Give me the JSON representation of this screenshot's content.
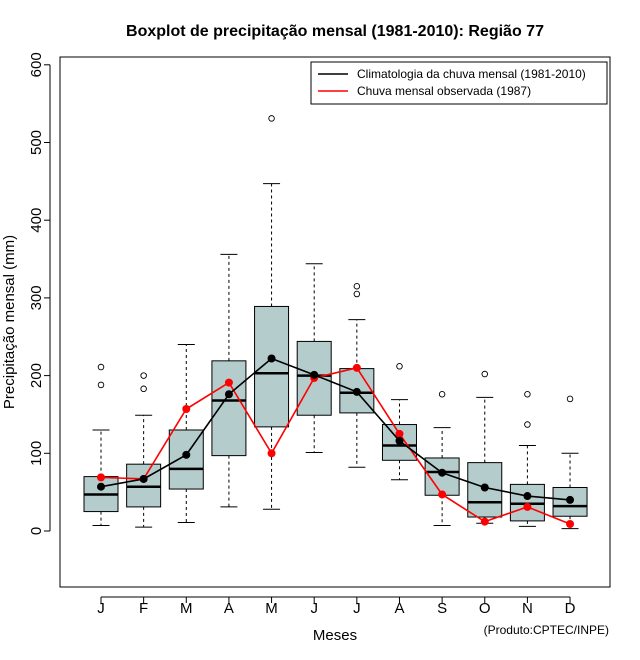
{
  "chart_data": {
    "type": "boxplot",
    "title": "Boxplot de precipitação mensal (1981-2010): Região 77",
    "xlabel": "Meses",
    "ylabel": "Precipitação mensal (mm)",
    "credit": "(Produto:CPTEC/INPE)",
    "ylim": [
      -70,
      610
    ],
    "yticks": [
      0,
      100,
      200,
      300,
      400,
      500,
      600
    ],
    "categories": [
      "J",
      "F",
      "M",
      "A",
      "M",
      "J",
      "J",
      "A",
      "S",
      "O",
      "N",
      "D"
    ],
    "boxes": [
      {
        "whisker_low": 7,
        "q1": 25,
        "median": 47,
        "q3": 70,
        "whisker_high": 130,
        "outliers": [
          188,
          211
        ]
      },
      {
        "whisker_low": 5,
        "q1": 31,
        "median": 57,
        "q3": 86,
        "whisker_high": 149,
        "outliers": [
          183,
          200
        ]
      },
      {
        "whisker_low": 11,
        "q1": 54,
        "median": 80,
        "q3": 130,
        "whisker_high": 240,
        "outliers": []
      },
      {
        "whisker_low": 31,
        "q1": 97,
        "median": 168,
        "q3": 219,
        "whisker_high": 356,
        "outliers": []
      },
      {
        "whisker_low": 28,
        "q1": 134,
        "median": 203,
        "q3": 289,
        "whisker_high": 447,
        "outliers": [
          531
        ]
      },
      {
        "whisker_low": 101,
        "q1": 149,
        "median": 200,
        "q3": 244,
        "whisker_high": 344,
        "outliers": []
      },
      {
        "whisker_low": 82,
        "q1": 152,
        "median": 178,
        "q3": 209,
        "whisker_high": 272,
        "outliers": [
          305,
          315
        ]
      },
      {
        "whisker_low": 66,
        "q1": 91,
        "median": 110,
        "q3": 137,
        "whisker_high": 169,
        "outliers": [
          212
        ]
      },
      {
        "whisker_low": 7,
        "q1": 46,
        "median": 76,
        "q3": 94,
        "whisker_high": 133,
        "outliers": [
          176
        ]
      },
      {
        "whisker_low": 10,
        "q1": 18,
        "median": 37,
        "q3": 88,
        "whisker_high": 172,
        "outliers": [
          202
        ]
      },
      {
        "whisker_low": 6,
        "q1": 13,
        "median": 35,
        "q3": 60,
        "whisker_high": 110,
        "outliers": [
          137,
          176
        ]
      },
      {
        "whisker_low": 3,
        "q1": 19,
        "median": 32,
        "q3": 56,
        "whisker_high": 100,
        "outliers": [
          170
        ]
      }
    ],
    "series": [
      {
        "name": "Climatologia da chuva mensal (1981-2010)",
        "color": "#000000",
        "values": [
          57,
          67,
          98,
          176,
          222,
          201,
          179,
          116,
          75,
          56,
          45,
          40
        ]
      },
      {
        "name": "Chuva mensal observada (1987)",
        "color": "#ff0000",
        "values": [
          69,
          67,
          157,
          191,
          100,
          197,
          210,
          125,
          47,
          12,
          31,
          9
        ]
      }
    ],
    "legend_position": "top-right",
    "box_fill": "#b4cccc"
  }
}
